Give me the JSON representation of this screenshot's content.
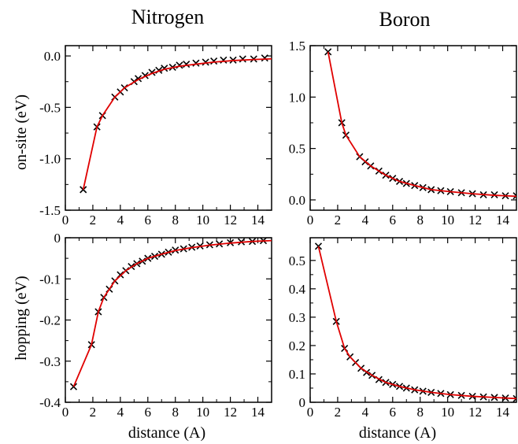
{
  "column_titles": [
    "Nitrogen",
    "Boron"
  ],
  "row_labels": [
    "on-site (eV)",
    "hopping (eV)"
  ],
  "x_axis_label": "distance (A)",
  "colors": {
    "marker": "#000000",
    "fit_line": "#e00000",
    "frame": "#000000"
  },
  "chart_data": [
    {
      "type": "scatter",
      "title": "Nitrogen",
      "ylabel": "on-site (eV)",
      "xlabel": "",
      "xlim": [
        0,
        15
      ],
      "ylim": [
        -1.5,
        0.1
      ],
      "xticks": [
        0,
        2,
        4,
        6,
        8,
        10,
        12,
        14
      ],
      "yticks": [
        -1.5,
        -1.0,
        -0.5,
        0.0
      ],
      "ytick_labels": [
        "-1.5",
        "-1.0",
        "-0.5",
        "0.0"
      ],
      "grid": false,
      "series": [
        {
          "kind": "points",
          "marker": "x",
          "x": [
            1.3,
            2.3,
            2.7,
            3.6,
            4.0,
            4.3,
            5.0,
            5.3,
            5.8,
            6.3,
            6.8,
            7.2,
            7.8,
            8.3,
            8.8,
            9.5,
            10.2,
            10.8,
            11.5,
            12.2,
            12.9,
            13.7,
            14.5
          ],
          "y": [
            -1.3,
            -0.69,
            -0.58,
            -0.4,
            -0.35,
            -0.31,
            -0.25,
            -0.22,
            -0.19,
            -0.16,
            -0.14,
            -0.12,
            -0.11,
            -0.09,
            -0.08,
            -0.07,
            -0.06,
            -0.05,
            -0.04,
            -0.04,
            -0.03,
            -0.03,
            -0.02
          ]
        },
        {
          "kind": "fit_line",
          "x": [
            1.3,
            2.3,
            2.7,
            3.6,
            4.3,
            5.3,
            6.3,
            7.2,
            8.3,
            9.5,
            10.8,
            12.2,
            13.7,
            15.0
          ],
          "y": [
            -1.3,
            -0.69,
            -0.58,
            -0.4,
            -0.31,
            -0.23,
            -0.17,
            -0.13,
            -0.1,
            -0.08,
            -0.06,
            -0.045,
            -0.035,
            -0.028
          ]
        }
      ]
    },
    {
      "type": "scatter",
      "title": "Boron",
      "ylabel": "",
      "xlabel": "",
      "xlim": [
        0,
        15
      ],
      "ylim": [
        -0.1,
        1.5
      ],
      "xticks": [
        0,
        2,
        4,
        6,
        8,
        10,
        12,
        14
      ],
      "yticks": [
        0.0,
        0.5,
        1.0,
        1.5
      ],
      "ytick_labels": [
        "0.0",
        "0.5",
        "1.0",
        "1.5"
      ],
      "grid": false,
      "series": [
        {
          "kind": "points",
          "marker": "x",
          "x": [
            1.3,
            2.3,
            2.6,
            3.6,
            4.0,
            4.4,
            5.0,
            5.5,
            6.0,
            6.5,
            7.0,
            7.6,
            8.2,
            8.8,
            9.5,
            10.2,
            11.0,
            11.8,
            12.6,
            13.4,
            14.2,
            15.0
          ],
          "y": [
            1.44,
            0.75,
            0.63,
            0.42,
            0.37,
            0.33,
            0.28,
            0.24,
            0.21,
            0.18,
            0.16,
            0.14,
            0.12,
            0.1,
            0.09,
            0.08,
            0.07,
            0.06,
            0.05,
            0.05,
            0.04,
            0.04
          ]
        },
        {
          "kind": "fit_line",
          "x": [
            1.3,
            2.3,
            2.6,
            3.6,
            4.4,
            5.5,
            6.5,
            7.6,
            8.8,
            10.2,
            11.8,
            13.4,
            15.0
          ],
          "y": [
            1.44,
            0.75,
            0.63,
            0.42,
            0.33,
            0.24,
            0.18,
            0.14,
            0.1,
            0.08,
            0.06,
            0.045,
            0.035
          ]
        }
      ]
    },
    {
      "type": "scatter",
      "title": "",
      "ylabel": "hopping (eV)",
      "xlabel": "distance (A)",
      "xlim": [
        0,
        15
      ],
      "ylim": [
        -0.4,
        0.0
      ],
      "xticks": [
        0,
        2,
        4,
        6,
        8,
        10,
        12,
        14
      ],
      "yticks": [
        -0.4,
        -0.3,
        -0.2,
        -0.1,
        0.0
      ],
      "ytick_labels": [
        "-0.4",
        "-0.3",
        "-0.2",
        "-0.1",
        "0"
      ],
      "grid": false,
      "series": [
        {
          "kind": "points",
          "marker": "x",
          "x": [
            0.6,
            1.9,
            2.4,
            2.8,
            3.2,
            3.6,
            4.0,
            4.4,
            4.8,
            5.2,
            5.6,
            6.0,
            6.5,
            7.0,
            7.5,
            8.0,
            8.6,
            9.2,
            9.8,
            10.5,
            11.2,
            12.0,
            12.8,
            13.6,
            14.4
          ],
          "y": [
            -0.362,
            -0.26,
            -0.18,
            -0.145,
            -0.125,
            -0.105,
            -0.09,
            -0.08,
            -0.07,
            -0.063,
            -0.057,
            -0.05,
            -0.045,
            -0.04,
            -0.035,
            -0.03,
            -0.027,
            -0.023,
            -0.02,
            -0.017,
            -0.015,
            -0.012,
            -0.01,
            -0.009,
            -0.007
          ]
        },
        {
          "kind": "fit_line",
          "x": [
            0.6,
            1.9,
            2.4,
            2.8,
            3.6,
            4.4,
            5.2,
            6.0,
            7.0,
            8.0,
            9.2,
            10.5,
            12.0,
            13.6,
            15.0
          ],
          "y": [
            -0.362,
            -0.26,
            -0.18,
            -0.145,
            -0.105,
            -0.08,
            -0.063,
            -0.05,
            -0.04,
            -0.031,
            -0.024,
            -0.018,
            -0.013,
            -0.009,
            -0.007
          ]
        }
      ]
    },
    {
      "type": "scatter",
      "title": "",
      "ylabel": "",
      "xlabel": "distance (A)",
      "xlim": [
        0,
        15
      ],
      "ylim": [
        0.0,
        0.58
      ],
      "xticks": [
        0,
        2,
        4,
        6,
        8,
        10,
        12,
        14
      ],
      "yticks": [
        0,
        0.1,
        0.2,
        0.3,
        0.4,
        0.5
      ],
      "ytick_labels": [
        "0",
        "0.1",
        "0.2",
        "0.3",
        "0.4",
        "0.5"
      ],
      "grid": false,
      "series": [
        {
          "kind": "points",
          "marker": "x",
          "x": [
            0.6,
            1.9,
            2.5,
            2.9,
            3.3,
            3.7,
            4.1,
            4.5,
            5.0,
            5.5,
            6.0,
            6.5,
            7.0,
            7.6,
            8.2,
            8.8,
            9.5,
            10.2,
            11.0,
            11.8,
            12.6,
            13.4,
            14.2,
            15.0
          ],
          "y": [
            0.55,
            0.285,
            0.19,
            0.16,
            0.14,
            0.12,
            0.105,
            0.095,
            0.08,
            0.07,
            0.063,
            0.056,
            0.05,
            0.044,
            0.039,
            0.035,
            0.031,
            0.027,
            0.024,
            0.021,
            0.019,
            0.017,
            0.015,
            0.013
          ]
        },
        {
          "kind": "fit_line",
          "x": [
            0.6,
            1.9,
            2.5,
            2.9,
            3.7,
            4.5,
            5.5,
            6.5,
            7.6,
            8.8,
            10.2,
            11.8,
            13.4,
            15.0
          ],
          "y": [
            0.55,
            0.285,
            0.19,
            0.16,
            0.12,
            0.095,
            0.07,
            0.056,
            0.044,
            0.035,
            0.027,
            0.021,
            0.017,
            0.013
          ]
        }
      ]
    }
  ]
}
